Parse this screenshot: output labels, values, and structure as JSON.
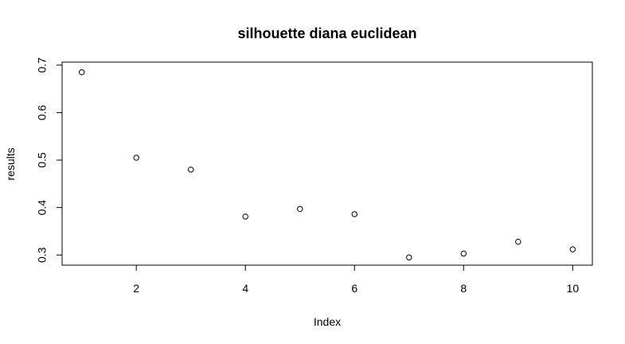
{
  "chart_data": {
    "type": "scatter",
    "title": "silhouette diana euclidean",
    "xlabel": "Index",
    "ylabel": "results",
    "x": [
      1,
      2,
      3,
      4,
      5,
      6,
      7,
      8,
      9,
      10
    ],
    "y": [
      0.685,
      0.505,
      0.48,
      0.381,
      0.397,
      0.386,
      0.295,
      0.303,
      0.328,
      0.312
    ],
    "xlim": [
      0.64,
      10.36
    ],
    "ylim": [
      0.2786,
      0.7064
    ],
    "xticks": [
      "2",
      "4",
      "6",
      "8",
      "10"
    ],
    "yticks": [
      "0.3",
      "0.4",
      "0.5",
      "0.6",
      "0.7"
    ],
    "grid": false,
    "marker": "open-circle",
    "colors": {
      "marker": "#000000",
      "axis": "#000000",
      "background": "#ffffff"
    }
  }
}
